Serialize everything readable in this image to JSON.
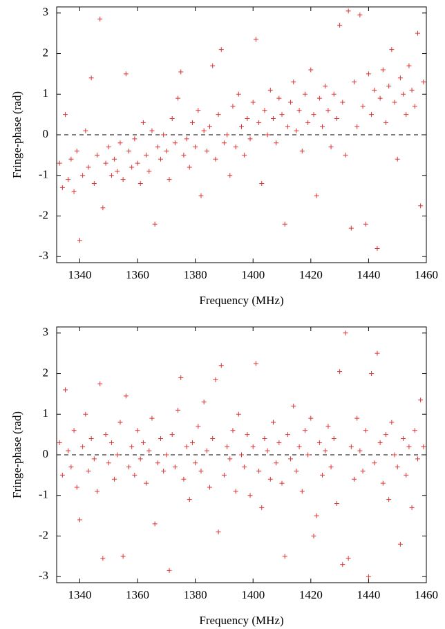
{
  "chart_data": [
    {
      "type": "scatter",
      "xlabel": "Frequency (MHz)",
      "ylabel": "Fringe-phase (rad)",
      "color": "#e03030",
      "xlim": [
        1332,
        1460
      ],
      "ylim": [
        -3.15,
        3.15
      ],
      "xticks": [
        1340,
        1360,
        1380,
        1400,
        1420,
        1440,
        1460
      ],
      "yticks": [
        -3,
        -2,
        -1,
        0,
        1,
        2,
        3
      ],
      "x": [
        1333,
        1334,
        1335,
        1336,
        1337,
        1338,
        1339,
        1340,
        1341,
        1342,
        1343,
        1344,
        1345,
        1346,
        1347,
        1348,
        1349,
        1350,
        1351,
        1352,
        1353,
        1354,
        1355,
        1356,
        1357,
        1358,
        1359,
        1360,
        1361,
        1362,
        1363,
        1364,
        1365,
        1366,
        1367,
        1368,
        1369,
        1370,
        1371,
        1372,
        1373,
        1374,
        1375,
        1376,
        1377,
        1378,
        1379,
        1380,
        1381,
        1382,
        1383,
        1384,
        1385,
        1386,
        1387,
        1388,
        1389,
        1390,
        1391,
        1392,
        1393,
        1394,
        1395,
        1396,
        1397,
        1398,
        1399,
        1400,
        1401,
        1402,
        1403,
        1404,
        1405,
        1406,
        1407,
        1408,
        1409,
        1410,
        1411,
        1412,
        1413,
        1414,
        1415,
        1416,
        1417,
        1418,
        1419,
        1420,
        1421,
        1422,
        1423,
        1424,
        1425,
        1426,
        1427,
        1428,
        1429,
        1430,
        1431,
        1432,
        1433,
        1434,
        1435,
        1436,
        1437,
        1438,
        1439,
        1440,
        1441,
        1442,
        1443,
        1444,
        1445,
        1446,
        1447,
        1448,
        1449,
        1450,
        1451,
        1452,
        1453,
        1454,
        1455,
        1456,
        1457,
        1458,
        1459
      ],
      "values": [
        -0.7,
        -1.3,
        0.5,
        -1.1,
        -0.6,
        -1.4,
        -0.4,
        -2.6,
        -1.0,
        0.1,
        -0.8,
        1.4,
        -1.2,
        -0.5,
        2.85,
        -1.8,
        -0.7,
        -0.3,
        -1.0,
        -0.6,
        -0.9,
        -0.2,
        -1.1,
        1.5,
        -0.4,
        -0.8,
        -0.1,
        -0.7,
        -1.2,
        0.3,
        -0.5,
        -0.9,
        0.1,
        -2.2,
        -0.3,
        -0.6,
        0.0,
        -0.4,
        -1.1,
        0.4,
        -0.2,
        0.9,
        1.55,
        -0.5,
        -0.1,
        -0.8,
        0.3,
        -0.3,
        0.6,
        -1.5,
        0.1,
        -0.4,
        0.2,
        1.7,
        -0.6,
        0.5,
        2.1,
        -0.2,
        0.0,
        -1.0,
        0.7,
        -0.3,
        1.0,
        0.2,
        -0.5,
        0.4,
        -0.1,
        0.8,
        2.35,
        0.3,
        -1.2,
        0.6,
        0.0,
        1.1,
        0.4,
        -0.2,
        0.9,
        0.5,
        -2.2,
        0.2,
        0.8,
        1.3,
        0.1,
        0.6,
        -0.4,
        1.0,
        0.3,
        1.6,
        0.5,
        -1.5,
        0.9,
        0.2,
        1.2,
        0.6,
        -0.3,
        1.0,
        0.4,
        2.7,
        0.8,
        -0.5,
        3.05,
        -2.3,
        1.3,
        0.2,
        2.95,
        0.7,
        -2.2,
        1.5,
        0.5,
        1.1,
        -2.8,
        0.9,
        1.6,
        0.3,
        1.2,
        2.1,
        0.8,
        -0.6,
        1.4,
        1.0,
        0.5,
        1.7,
        1.1,
        0.7,
        2.5,
        -1.75,
        1.3
      ]
    },
    {
      "type": "scatter",
      "xlabel": "Frequency (MHz)",
      "ylabel": "Fringe-phase (rad)",
      "color": "#e03030",
      "xlim": [
        1332,
        1460
      ],
      "ylim": [
        -3.15,
        3.15
      ],
      "xticks": [
        1340,
        1360,
        1380,
        1400,
        1420,
        1440,
        1460
      ],
      "yticks": [
        -3,
        -2,
        -1,
        0,
        1,
        2,
        3
      ],
      "x": [
        1333,
        1334,
        1335,
        1336,
        1337,
        1338,
        1339,
        1340,
        1341,
        1342,
        1343,
        1344,
        1345,
        1346,
        1347,
        1348,
        1349,
        1350,
        1351,
        1352,
        1353,
        1354,
        1355,
        1356,
        1357,
        1358,
        1359,
        1360,
        1361,
        1362,
        1363,
        1364,
        1365,
        1366,
        1367,
        1368,
        1369,
        1370,
        1371,
        1372,
        1373,
        1374,
        1375,
        1376,
        1377,
        1378,
        1379,
        1380,
        1381,
        1382,
        1383,
        1384,
        1385,
        1386,
        1387,
        1388,
        1389,
        1390,
        1391,
        1392,
        1393,
        1394,
        1395,
        1396,
        1397,
        1398,
        1399,
        1400,
        1401,
        1402,
        1403,
        1404,
        1405,
        1406,
        1407,
        1408,
        1409,
        1410,
        1411,
        1412,
        1413,
        1414,
        1415,
        1416,
        1417,
        1418,
        1419,
        1420,
        1421,
        1422,
        1423,
        1424,
        1425,
        1426,
        1427,
        1428,
        1429,
        1430,
        1431,
        1432,
        1433,
        1434,
        1435,
        1436,
        1437,
        1438,
        1439,
        1440,
        1441,
        1442,
        1443,
        1444,
        1445,
        1446,
        1447,
        1448,
        1449,
        1450,
        1451,
        1452,
        1453,
        1454,
        1455,
        1456,
        1457,
        1458,
        1459
      ],
      "values": [
        0.3,
        -0.5,
        1.6,
        0.1,
        -0.3,
        0.6,
        -0.8,
        -1.6,
        0.2,
        1.0,
        -0.4,
        0.4,
        -0.1,
        -0.9,
        1.75,
        -2.55,
        0.5,
        -0.2,
        0.3,
        -0.6,
        0.0,
        0.8,
        -2.5,
        1.45,
        -0.3,
        0.2,
        -0.5,
        0.6,
        -0.1,
        0.3,
        -0.7,
        0.1,
        0.9,
        -1.7,
        -0.2,
        0.4,
        -0.4,
        0.0,
        -2.85,
        0.5,
        -0.3,
        1.1,
        1.9,
        -0.6,
        0.2,
        -1.1,
        0.3,
        -0.2,
        0.7,
        -0.4,
        1.3,
        0.1,
        -0.8,
        0.4,
        1.85,
        -1.9,
        2.2,
        -0.5,
        0.2,
        -0.1,
        0.6,
        -0.9,
        1.0,
        0.0,
        -0.3,
        0.5,
        -1.0,
        0.2,
        2.25,
        -0.4,
        -1.3,
        0.4,
        0.1,
        -0.6,
        0.8,
        -0.2,
        0.3,
        -0.7,
        -2.5,
        0.5,
        -0.1,
        1.2,
        -0.4,
        0.2,
        -0.9,
        0.6,
        0.0,
        0.9,
        -2.0,
        -1.5,
        0.3,
        -0.5,
        0.1,
        0.7,
        -0.3,
        0.4,
        -1.2,
        2.05,
        -2.7,
        3.0,
        -2.55,
        0.2,
        -0.6,
        0.9,
        0.1,
        -0.4,
        0.6,
        -3.0,
        2.0,
        -0.2,
        2.5,
        0.3,
        -0.7,
        0.5,
        -1.1,
        0.8,
        0.0,
        -0.3,
        -2.2,
        0.4,
        -0.5,
        0.2,
        -1.3,
        0.6,
        -0.1,
        1.35,
        0.2
      ]
    }
  ]
}
